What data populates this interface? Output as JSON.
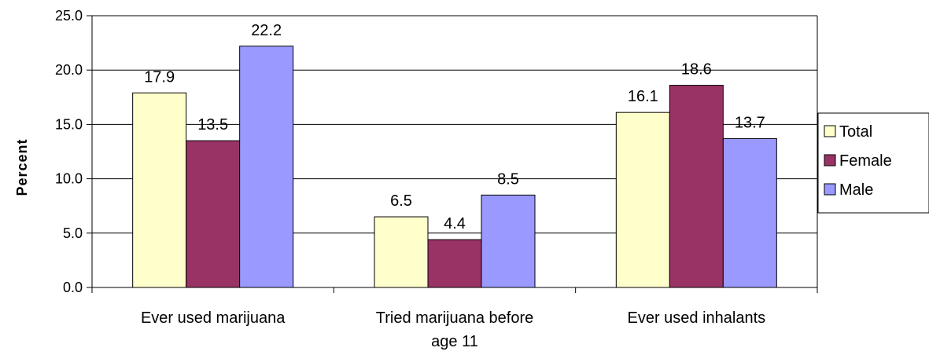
{
  "chart_data": {
    "type": "bar",
    "title": "",
    "xlabel": "",
    "ylabel": "Percent",
    "ylim": [
      0,
      25
    ],
    "yticks": [
      "0.0",
      "5.0",
      "10.0",
      "15.0",
      "20.0",
      "25.0"
    ],
    "ytick_values": [
      0,
      5,
      10,
      15,
      20,
      25
    ],
    "grid": true,
    "legend_position": "right",
    "categories": [
      [
        "Ever used marijuana"
      ],
      [
        "Tried marijuana before",
        "age 11"
      ],
      [
        "Ever used inhalants"
      ]
    ],
    "series": [
      {
        "name": "Total",
        "color": "#FFFFCC",
        "values": [
          17.9,
          6.5,
          16.1
        ],
        "labels": [
          "17.9",
          "6.5",
          "16.1"
        ]
      },
      {
        "name": "Female",
        "color": "#993366",
        "values": [
          13.5,
          4.4,
          18.6
        ],
        "labels": [
          "13.5",
          "4.4",
          "18.6"
        ]
      },
      {
        "name": "Male",
        "color": "#9999FF",
        "values": [
          22.2,
          8.5,
          13.7
        ],
        "labels": [
          "22.2",
          "8.5",
          "13.7"
        ]
      }
    ]
  }
}
